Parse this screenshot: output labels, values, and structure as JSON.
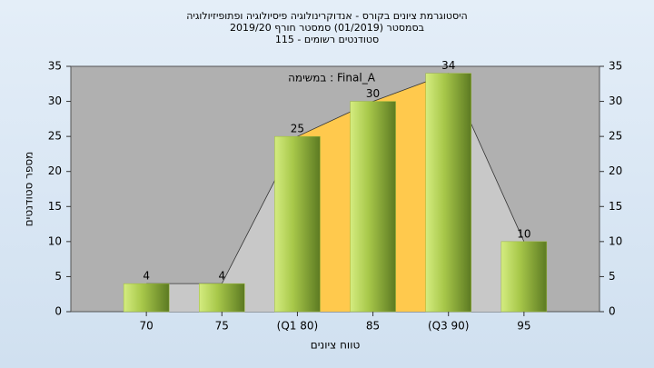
{
  "chart_data": {
    "type": "bar",
    "title": [
      "היסטוגרמת ציונים בקורס - אנדוקרינולוגיה פיסיולוגיה ופתופיזיולוגיה",
      "בסמסטר  (01/2019)  סמסטר חורף 2019/20",
      "סטודנטים רשומים - 115"
    ],
    "annotation": "במשימה : Final_A",
    "categories": [
      "70",
      "75",
      "(Q1 80)",
      "85",
      "(Q3 90)",
      "95"
    ],
    "values": [
      4,
      4,
      25,
      30,
      34,
      10
    ],
    "color": "#9ab83a",
    "area_color": "#c8c8c8",
    "highlight_color": "#ffc94d",
    "ylim": [
      0,
      35
    ],
    "yticks": [
      0,
      5,
      10,
      15,
      20,
      25,
      30,
      35
    ],
    "y2lim": [
      0,
      35
    ],
    "y2ticks": [
      0,
      5,
      10,
      15,
      20,
      25,
      30,
      35
    ],
    "xlabel": "טווח ציונים",
    "ylabel": "מספר סטודנטים"
  }
}
